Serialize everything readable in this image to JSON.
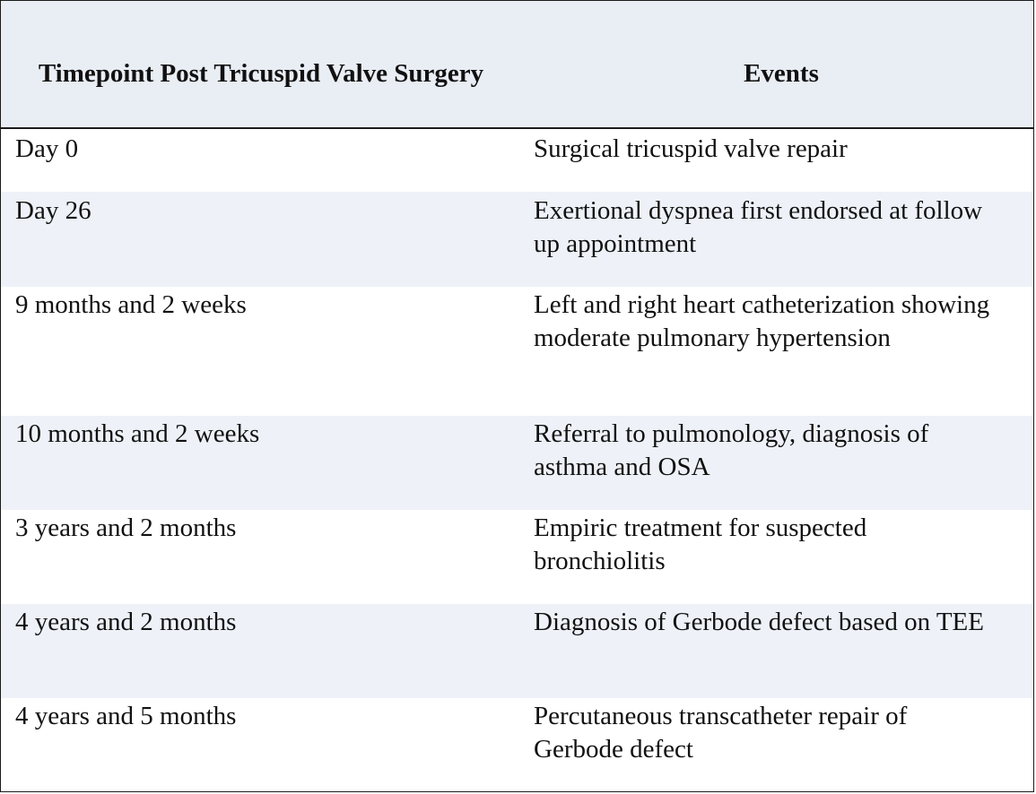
{
  "table": {
    "headers": {
      "timepoint": "Timepoint Post Tricuspid Valve Surgery",
      "events": "Events"
    },
    "rows": [
      {
        "timepoint": "Day 0",
        "event": "Surgical tricuspid valve repair"
      },
      {
        "timepoint": "Day 26",
        "event": "Exertional dyspnea first endorsed at follow up appointment"
      },
      {
        "timepoint": "9 months and 2 weeks",
        "event": "Left and right heart catheterization showing moderate pulmonary hypertension"
      },
      {
        "timepoint": "10 months and 2 weeks",
        "event": "Referral to pulmonology, diagnosis of asthma and OSA"
      },
      {
        "timepoint": "3 years and 2 months",
        "event": "Empiric treatment for suspected bronchiolitis"
      },
      {
        "timepoint": "4 years and 2 months",
        "event": "Diagnosis of Gerbode defect based on TEE"
      },
      {
        "timepoint": "4 years and 5 months",
        "event": "Percutaneous transcatheter repair of Gerbode defect"
      }
    ]
  },
  "colors": {
    "header_bg": "#e9eef5",
    "shaded_row_bg": "#eef2f8",
    "border": "#1a1a1a"
  }
}
